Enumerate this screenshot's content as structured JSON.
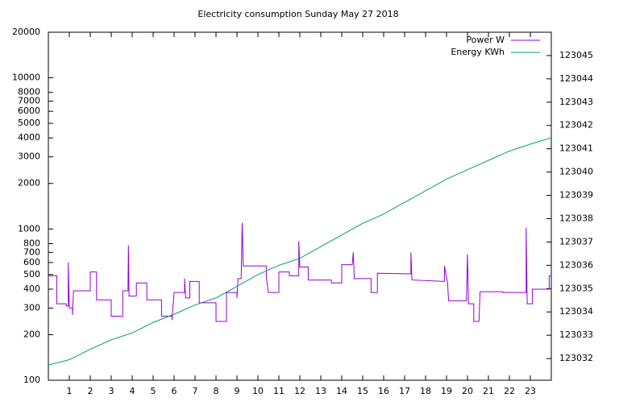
{
  "chart_data": {
    "type": "line",
    "title": "Electricity consumption Sunday May 27 2018",
    "log_y": true,
    "grid": false,
    "legend": "top-right",
    "xlim": [
      0,
      24
    ],
    "xticks": [
      1,
      2,
      3,
      4,
      5,
      6,
      7,
      8,
      9,
      10,
      11,
      12,
      13,
      14,
      15,
      16,
      17,
      18,
      19,
      20,
      21,
      22,
      23
    ],
    "ylim": [
      100,
      20000
    ],
    "yticks": [
      100,
      200,
      300,
      400,
      500,
      600,
      700,
      800,
      1000,
      2000,
      3000,
      4000,
      5000,
      6000,
      7000,
      8000,
      10000,
      20000
    ],
    "y2lim": [
      123031.07,
      123046.0
    ],
    "y2ticks": [
      123032,
      123033,
      123034,
      123035,
      123036,
      123037,
      123038,
      123039,
      123040,
      123041,
      123042,
      123043,
      123044,
      123045
    ],
    "series": [
      {
        "name": "Power W",
        "color": "#9400d3",
        "x": [
          0,
          0.4,
          0.4,
          0.85,
          0.85,
          0.95,
          0.95,
          1.0,
          1.15,
          1.15,
          1.2,
          2,
          2,
          2.3,
          2.3,
          3,
          3,
          3.55,
          3.55,
          3.8,
          3.82,
          3.85,
          4.2,
          4.2,
          4.7,
          4.7,
          5.4,
          5.4,
          5.9,
          5.9,
          6,
          6.5,
          6.5,
          6.55,
          6.75,
          6.75,
          7.2,
          7.2,
          8,
          8,
          8.5,
          8.5,
          9,
          9,
          9.05,
          9.2,
          9.25,
          9.3,
          10.4,
          10.4,
          10.5,
          11,
          11,
          11.5,
          11.5,
          11.95,
          11.95,
          12,
          12.4,
          12.4,
          13.5,
          13.5,
          14,
          14,
          14.5,
          14.55,
          14.6,
          15.4,
          15.4,
          15.7,
          15.7,
          17.3,
          17.3,
          17.35,
          18.9,
          18.9,
          19.05,
          19.1,
          19.95,
          20,
          20.05,
          20.3,
          20.3,
          20.55,
          20.6,
          21.7,
          21.7,
          22.8,
          22.8,
          22.85,
          23.1,
          23.1,
          23.9,
          23.9,
          24
        ],
        "values": [
          490,
          490,
          320,
          320,
          310,
          310,
          600,
          300,
          300,
          270,
          390,
          390,
          520,
          520,
          340,
          340,
          265,
          265,
          390,
          390,
          780,
          360,
          360,
          440,
          440,
          340,
          340,
          265,
          265,
          250,
          380,
          380,
          470,
          350,
          350,
          450,
          450,
          325,
          325,
          245,
          245,
          380,
          380,
          350,
          470,
          470,
          1100,
          570,
          570,
          480,
          380,
          380,
          520,
          520,
          490,
          490,
          830,
          560,
          560,
          460,
          460,
          440,
          440,
          580,
          580,
          700,
          470,
          470,
          380,
          380,
          510,
          505,
          700,
          460,
          450,
          570,
          440,
          335,
          335,
          680,
          320,
          320,
          245,
          245,
          385,
          385,
          380,
          380,
          1020,
          320,
          320,
          400,
          400,
          490,
          490
        ]
      },
      {
        "name": "Energy KWh",
        "color": "#009e73",
        "axis": "y2",
        "x": [
          0,
          1,
          2,
          3,
          4,
          5,
          6,
          7,
          8,
          9,
          10,
          11,
          12,
          13,
          14,
          15,
          16,
          17,
          18,
          19,
          20,
          21,
          22,
          23,
          24
        ],
        "values": [
          123031.72,
          123031.95,
          123032.4,
          123032.8,
          123033.1,
          123033.55,
          123033.9,
          123034.3,
          123034.6,
          123035.1,
          123035.6,
          123036.0,
          123036.3,
          123036.8,
          123037.3,
          123037.8,
          123038.2,
          123038.7,
          123039.2,
          123039.7,
          123040.1,
          123040.5,
          123040.9,
          123041.2,
          123041.47
        ]
      }
    ]
  }
}
